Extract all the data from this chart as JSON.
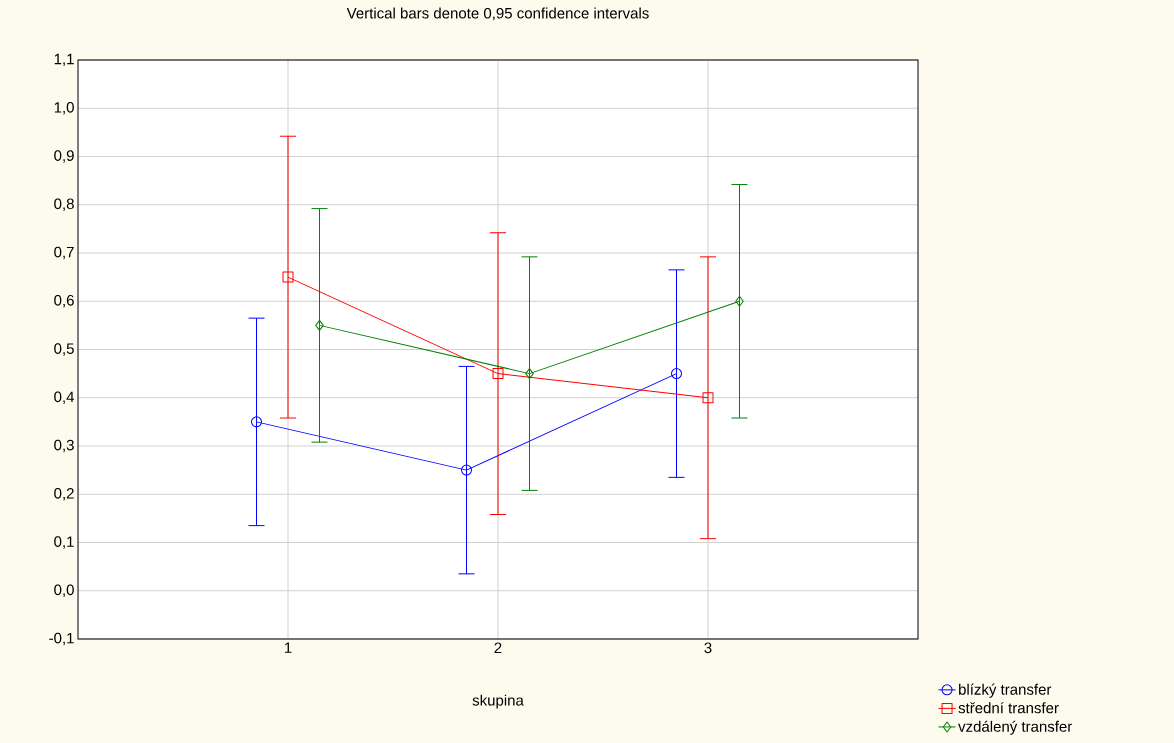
{
  "chart_data": {
    "type": "line",
    "title": "Vertical bars denote 0,95 confidence intervals",
    "xlabel": "skupina",
    "xlim": [
      0,
      4
    ],
    "ylim": [
      -0.1,
      1.1
    ],
    "xticks": [
      1,
      2,
      3
    ],
    "yticks": [
      {
        "value": -0.1,
        "label": "-0,1"
      },
      {
        "value": 0.0,
        "label": "0,0"
      },
      {
        "value": 0.1,
        "label": "0,1"
      },
      {
        "value": 0.2,
        "label": "0,2"
      },
      {
        "value": 0.3,
        "label": "0,3"
      },
      {
        "value": 0.4,
        "label": "0,4"
      },
      {
        "value": 0.5,
        "label": "0,5"
      },
      {
        "value": 0.6,
        "label": "0,6"
      },
      {
        "value": 0.7,
        "label": "0,7"
      },
      {
        "value": 0.8,
        "label": "0,8"
      },
      {
        "value": 0.9,
        "label": "0,9"
      },
      {
        "value": 1.0,
        "label": "1,0"
      },
      {
        "value": 1.1,
        "label": "1,1"
      }
    ],
    "grid": true,
    "legend": "bottom right",
    "series": [
      {
        "name": "blízký transfer",
        "color": "#0000ff",
        "marker": "circle",
        "x": [
          0.85,
          1.85,
          2.85
        ],
        "values": [
          0.35,
          0.25,
          0.45
        ],
        "errors": [
          0.215,
          0.215,
          0.215
        ]
      },
      {
        "name": "střední transfer",
        "color": "#ff0000",
        "marker": "square",
        "x": [
          1,
          2,
          3
        ],
        "values": [
          0.65,
          0.45,
          0.4
        ],
        "errors": [
          0.292,
          0.292,
          0.292
        ]
      },
      {
        "name": "vzdálený transfer",
        "color": "#008000",
        "marker": "diamond",
        "x": [
          1.15,
          2.15,
          3.15
        ],
        "values": [
          0.55,
          0.45,
          0.6
        ],
        "errors": [
          0.242,
          0.242,
          0.242
        ]
      }
    ]
  }
}
